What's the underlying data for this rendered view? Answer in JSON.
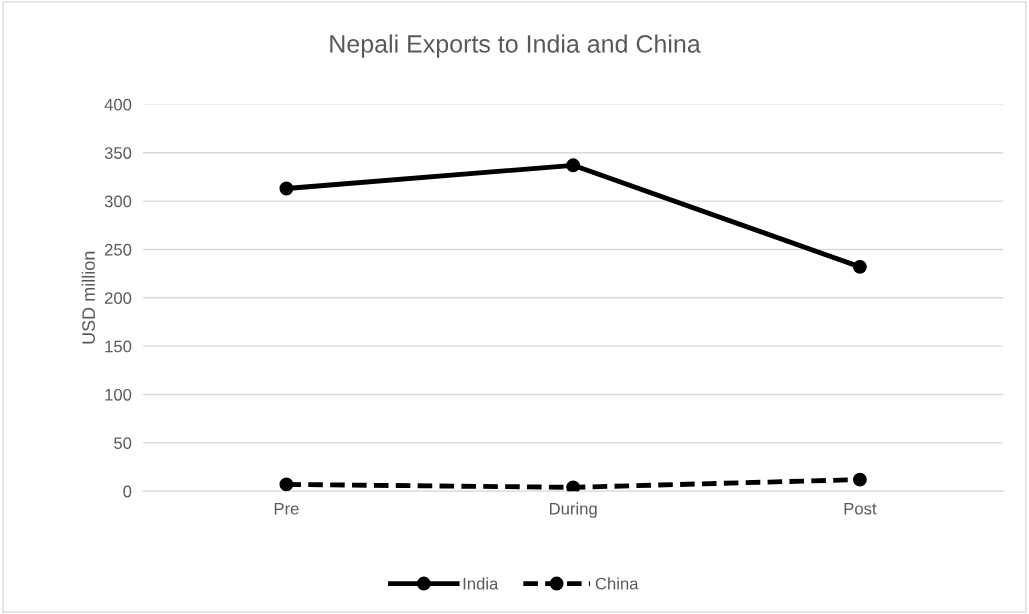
{
  "chart_data": {
    "type": "line",
    "title": "Nepali Exports to India and China",
    "ylabel": "USD million",
    "categories": [
      "Pre",
      "During",
      "Post"
    ],
    "series": [
      {
        "name": "India",
        "color": "#000000",
        "values": [
          313,
          337,
          232
        ],
        "line_style": "solid"
      },
      {
        "name": "China",
        "color": "#000000",
        "values": [
          7,
          4,
          12
        ],
        "line_style": "dashed"
      }
    ],
    "ylim": [
      0,
      400
    ],
    "yticks": [
      0,
      50,
      100,
      150,
      200,
      250,
      300,
      350,
      400
    ],
    "grid": "y",
    "legend": "bottom",
    "marker": "circle"
  }
}
